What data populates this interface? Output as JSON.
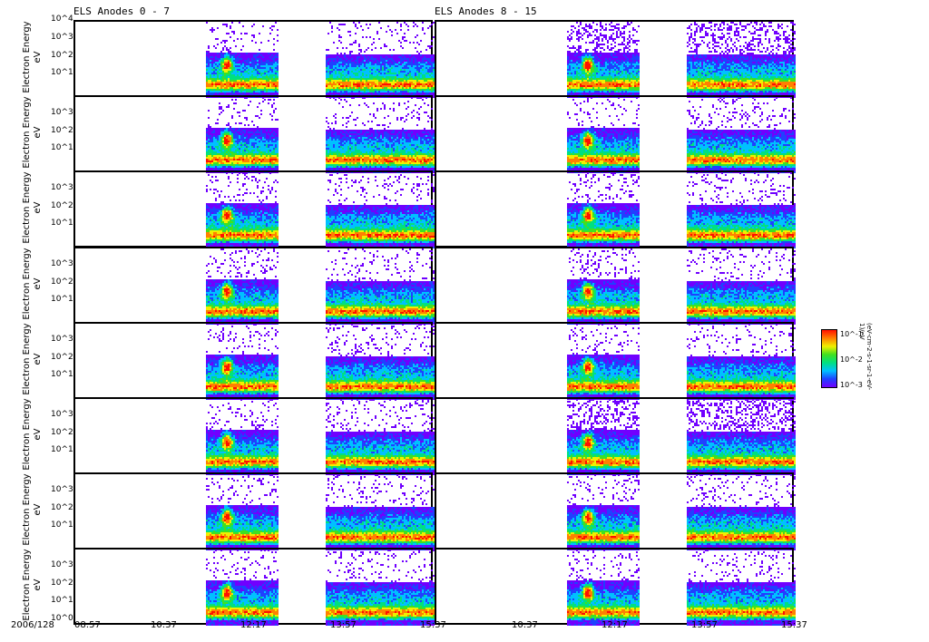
{
  "chart_data": {
    "type": "heatmap",
    "date_label": "2006/128",
    "x_ticks": [
      "08:57",
      "10:37",
      "12:17",
      "13:57",
      "15:37"
    ],
    "columns": [
      {
        "title": "ELS Anodes 0 - 7",
        "data_intervals": [
          [
            "11:21",
            "12:42"
          ],
          [
            "13:35",
            "15:37"
          ]
        ],
        "peak_time": "11:45"
      },
      {
        "title": "ELS Anodes 8 - 15",
        "data_intervals": [
          [
            "11:21",
            "12:42"
          ],
          [
            "13:35",
            "15:37"
          ]
        ],
        "peak_time": "11:45"
      }
    ],
    "rows": 8,
    "ylabel": "Electron Energy",
    "yunit": "eV",
    "ylim_log10": [
      0,
      4
    ],
    "y_ticks_top": [
      "10^4",
      "10^3",
      "10^2",
      "10^1"
    ],
    "y_ticks": [
      "10^3",
      "10^2",
      "10^1"
    ],
    "y_tick_bottom": "10^0",
    "colorbar": {
      "ticks": [
        "10^-1",
        "10^-2",
        "10^-3"
      ],
      "label": "(eV-cm-2-s-1-sr-1-eV-1)/eV",
      "colors": [
        "#7000ff",
        "#2040ff",
        "#00c0ff",
        "#00e080",
        "#40e020",
        "#f0f000",
        "#ff8000",
        "#ff1000"
      ]
    }
  }
}
